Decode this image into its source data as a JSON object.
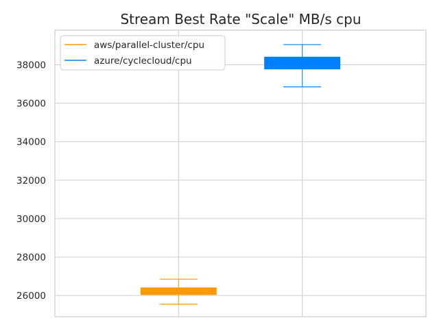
{
  "chart_data": {
    "type": "box",
    "title": "Stream Best Rate \"Scale\" MB/s cpu",
    "xlabel": "",
    "ylabel": "",
    "ylim": [
      24900,
      39800
    ],
    "yticks": [
      26000,
      28000,
      30000,
      32000,
      34000,
      36000,
      38000
    ],
    "grid": true,
    "legend_position": "top-left",
    "series": [
      {
        "name": "aws/parallel-cluster/cpu",
        "color": "#ff9900",
        "whisker_low": 25550,
        "q1": 26050,
        "median": 26200,
        "q3": 26400,
        "whisker_high": 26850
      },
      {
        "name": "azure/cyclecloud/cpu",
        "color": "#0080ff",
        "whisker_low": 36850,
        "q1": 37780,
        "median": 38100,
        "q3": 38400,
        "whisker_high": 39050
      }
    ]
  }
}
